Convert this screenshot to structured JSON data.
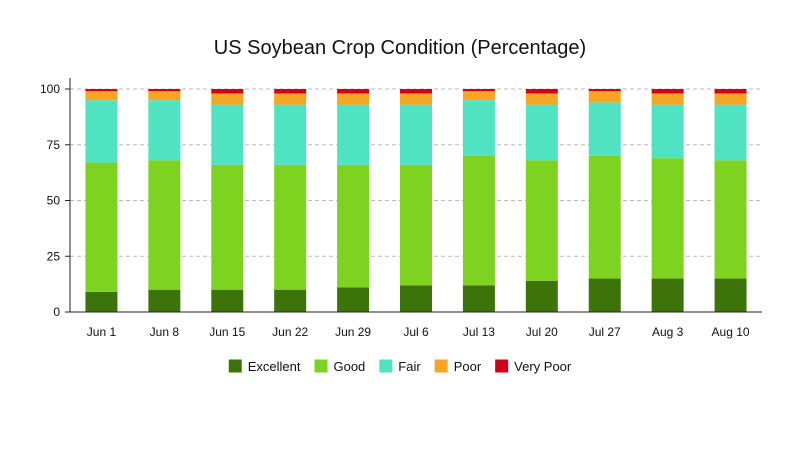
{
  "chart_data": {
    "type": "bar",
    "stacked": true,
    "title": "US Soybean Crop Condition (Percentage)",
    "xlabel": "",
    "ylabel": "",
    "ylim": [
      0,
      100
    ],
    "yticks": [
      0,
      25,
      50,
      75,
      100
    ],
    "grid": "horizontal dashed",
    "legend_position": "bottom",
    "categories": [
      "Jun 1",
      "Jun 8",
      "Jun 15",
      "Jun 22",
      "Jun 29",
      "Jul 6",
      "Jul 13",
      "Jul 20",
      "Jul 27",
      "Aug 3",
      "Aug 10"
    ],
    "series": [
      {
        "name": "Excellent",
        "color": "#3d7409",
        "values": [
          9,
          10,
          10,
          10,
          11,
          12,
          12,
          14,
          15,
          15,
          15
        ]
      },
      {
        "name": "Good",
        "color": "#7ed321",
        "values": [
          58,
          58,
          56,
          56,
          55,
          54,
          58,
          54,
          55,
          54,
          53
        ]
      },
      {
        "name": "Fair",
        "color": "#50e3c2",
        "values": [
          28,
          27,
          27,
          27,
          27,
          27,
          25,
          25,
          24,
          24,
          25
        ]
      },
      {
        "name": "Poor",
        "color": "#f5a623",
        "values": [
          4,
          4,
          5,
          5,
          5,
          5,
          4,
          5,
          5,
          5,
          5
        ]
      },
      {
        "name": "Very Poor",
        "color": "#d0021b",
        "values": [
          1,
          1,
          2,
          2,
          2,
          2,
          1,
          2,
          1,
          2,
          2
        ]
      }
    ]
  }
}
